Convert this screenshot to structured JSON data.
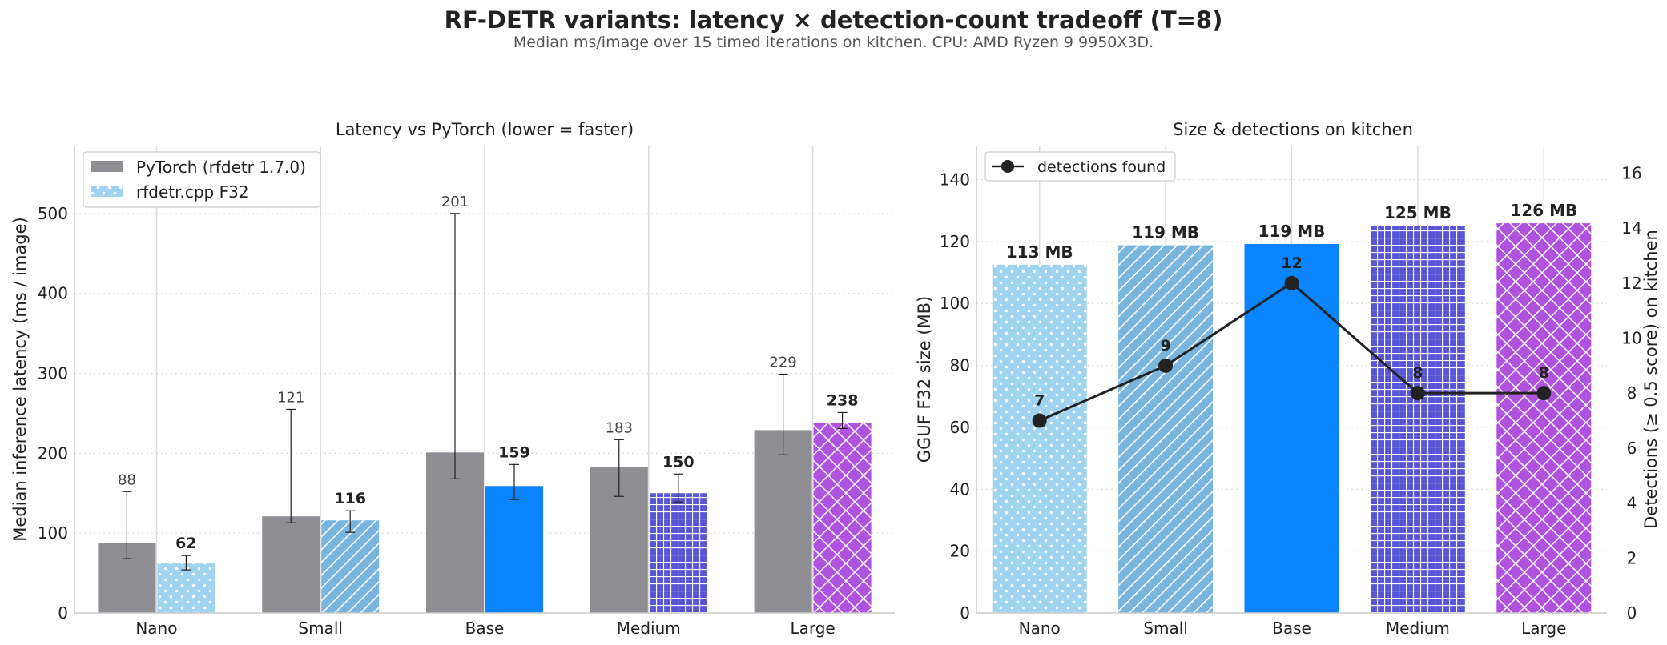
{
  "figure": {
    "title": "RF-DETR variants: latency × detection-count tradeoff (T=8)",
    "subtitle": "Median ms/image over 15 timed iterations on kitchen. CPU: AMD Ryzen 9 9950X3D."
  },
  "colors": {
    "pytorch": "#8e8e93",
    "nano": "#9fd3f0",
    "small": "#7ab5df",
    "base": "#0a84ff",
    "medium": "#5856d6",
    "large": "#af52de",
    "line": "#222222"
  },
  "chart_data": [
    {
      "type": "bar",
      "title": "Latency vs PyTorch (lower = faster)",
      "xlabel": "",
      "ylabel": "Median inference latency (ms / image)",
      "categories": [
        "Nano",
        "Small",
        "Base",
        "Medium",
        "Large"
      ],
      "ylim": [
        0,
        585
      ],
      "yticks": [
        0,
        100,
        200,
        300,
        400,
        500
      ],
      "grid": "y",
      "legend_position": "top-left",
      "series": [
        {
          "name": "PyTorch (rfdetr 1.7.0)",
          "values": [
            88,
            121,
            201,
            183,
            229
          ],
          "error_low": [
            68,
            113,
            168,
            146,
            198
          ],
          "error_high": [
            152,
            255,
            500,
            217,
            299
          ],
          "labels": [
            "88",
            "121",
            "201",
            "183",
            "229"
          ]
        },
        {
          "name": "rfdetr.cpp F32",
          "values": [
            62,
            116,
            159,
            150,
            238
          ],
          "error_low": [
            54,
            101,
            142,
            139,
            231
          ],
          "error_high": [
            72,
            128,
            186,
            174,
            251
          ],
          "labels": [
            "62",
            "116",
            "159",
            "150",
            "238"
          ],
          "patterns": [
            "dots",
            "diagonal",
            "solid",
            "grid",
            "crosshatch"
          ]
        }
      ]
    },
    {
      "type": "bar+line",
      "title": "Size & detections on kitchen",
      "xlabel": "",
      "ylabel": "GGUF F32 size (MB)",
      "ylabel_right": "Detections (≥ 0.5 score) on kitchen",
      "categories": [
        "Nano",
        "Small",
        "Base",
        "Medium",
        "Large"
      ],
      "ylim": [
        0,
        151
      ],
      "yticks": [
        0,
        20,
        40,
        60,
        80,
        100,
        120,
        140
      ],
      "ylim_right": [
        0,
        17
      ],
      "yticks_right": [
        0,
        2,
        4,
        6,
        8,
        10,
        12,
        14,
        16
      ],
      "grid": "y",
      "legend_position": "top-left",
      "series": [
        {
          "name": "GGUF size",
          "kind": "bar",
          "values": [
            112.5,
            118.8,
            119.2,
            125.1,
            125.9
          ],
          "labels": [
            "113 MB",
            "119 MB",
            "119 MB",
            "125 MB",
            "126 MB"
          ],
          "patterns": [
            "dots",
            "diagonal",
            "solid",
            "grid",
            "crosshatch"
          ]
        },
        {
          "name": "detections found",
          "kind": "line",
          "axis": "right",
          "values": [
            7,
            9,
            12,
            8,
            8
          ],
          "labels": [
            "7",
            "9",
            "12",
            "8",
            "8"
          ]
        }
      ]
    }
  ]
}
